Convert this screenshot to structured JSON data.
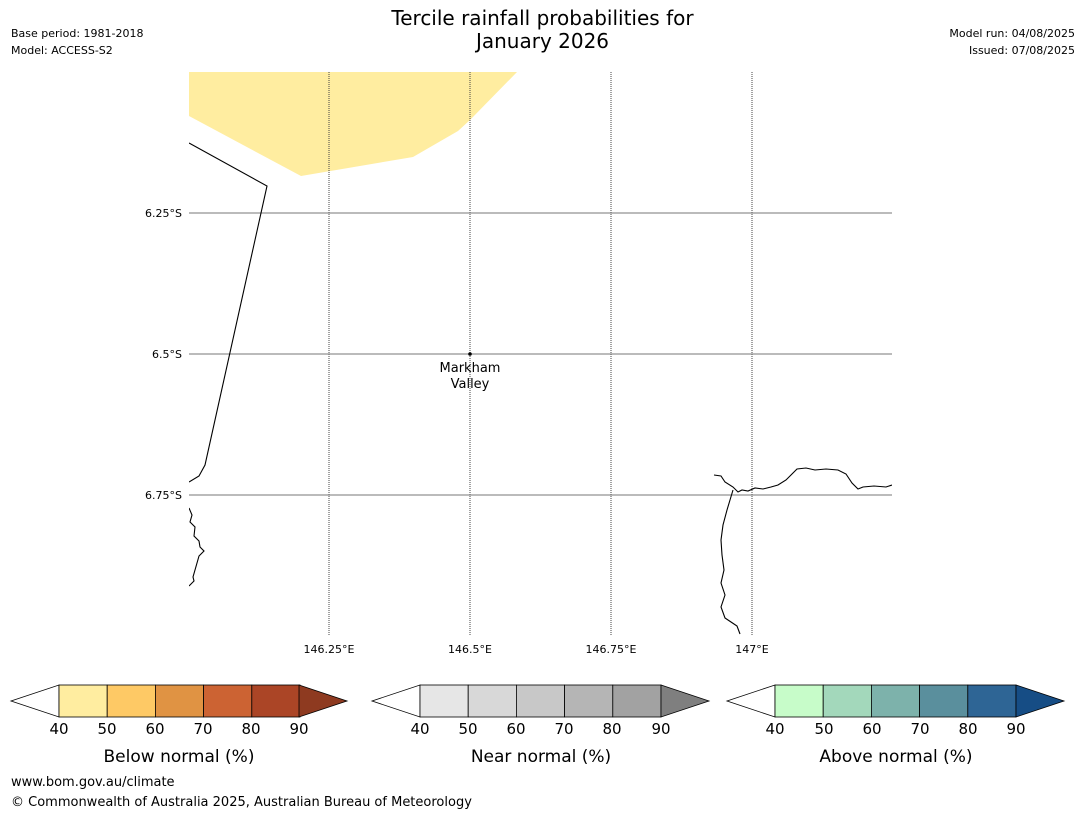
{
  "header": {
    "title_line1": "Tercile rainfall probabilities for",
    "title_line2": "January 2026",
    "base_period": "Base period: 1981-2018",
    "model": "Model: ACCESS-S2",
    "model_run": "Model run: 04/08/2025",
    "issued": "Issued: 07/08/2025"
  },
  "map": {
    "lat_labels": [
      "6.25°S",
      "6.5°S",
      "6.75°S"
    ],
    "lon_labels": [
      "146.25°E",
      "146.5°E",
      "146.75°E",
      "147°E"
    ],
    "place_label_line1": "Markham",
    "place_label_line2": "Valley",
    "shaded_region_category": "Below normal 40-50%",
    "shaded_region_color": "#ffeda0"
  },
  "colorbars": [
    {
      "label": "Below normal (%)",
      "ticks": [
        "40",
        "50",
        "60",
        "70",
        "80",
        "90"
      ],
      "colors": [
        "#ffeda0",
        "#fec965",
        "#e09343",
        "#cc6333",
        "#ab4526"
      ],
      "over_color": "#8e3a20"
    },
    {
      "label": "Near normal (%)",
      "ticks": [
        "40",
        "50",
        "60",
        "70",
        "80",
        "90"
      ],
      "colors": [
        "#e6e6e6",
        "#d8d8d8",
        "#c8c8c8",
        "#b5b5b5",
        "#a2a2a2"
      ],
      "over_color": "#7f7f7f"
    },
    {
      "label": "Above normal (%)",
      "ticks": [
        "40",
        "50",
        "60",
        "70",
        "80",
        "90"
      ],
      "colors": [
        "#c7fcc9",
        "#a3d8bb",
        "#7db2ab",
        "#5a8f9d",
        "#2e6595"
      ],
      "over_color": "#164d85"
    }
  ],
  "footer": {
    "url": "www.bom.gov.au/climate",
    "copyright": "© Commonwealth of Australia 2025, Australian Bureau of Meteorology"
  }
}
